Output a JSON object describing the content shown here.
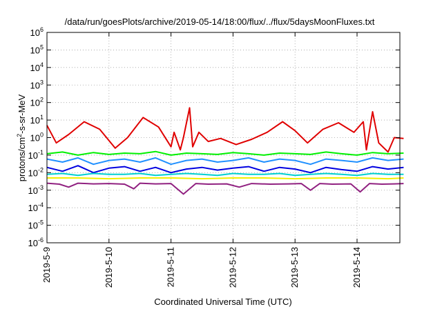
{
  "chart_data": {
    "type": "line",
    "title": "/data/run/goesPlots/archive/2019-05-14/18:00/flux/../flux/5daysMoonFluxes.txt",
    "xlabel": "Coordinated Universal Time (UTC)",
    "ylabel": "protons/cm²-s-sr-MeV",
    "ylabel_parts": {
      "before": "protons/cm",
      "sup": "2",
      "after": "-s-sr-MeV"
    },
    "yscale": "log",
    "ylim": [
      1e-06,
      1000000.0
    ],
    "yticks": [
      {
        "base": "10",
        "exp": "-6",
        "value": -6
      },
      {
        "base": "10",
        "exp": "-5",
        "value": -5
      },
      {
        "base": "10",
        "exp": "-4",
        "value": -4
      },
      {
        "base": "10",
        "exp": "-3",
        "value": -3
      },
      {
        "base": "10",
        "exp": "-2",
        "value": -2
      },
      {
        "base": "10",
        "exp": "-1",
        "value": -1
      },
      {
        "base": "10",
        "exp": "0",
        "value": 0
      },
      {
        "base": "10",
        "exp": "1",
        "value": 1
      },
      {
        "base": "10",
        "exp": "2",
        "value": 2
      },
      {
        "base": "10",
        "exp": "3",
        "value": 3
      },
      {
        "base": "10",
        "exp": "4",
        "value": 4
      },
      {
        "base": "10",
        "exp": "5",
        "value": 5
      },
      {
        "base": "10",
        "exp": "6",
        "value": 6
      }
    ],
    "xlim": [
      "2019-05-09 00:00",
      "2019-05-14 18:00"
    ],
    "xticks": [
      {
        "label": "2019-5-9",
        "day": 0
      },
      {
        "label": "2019-5-10",
        "day": 1
      },
      {
        "label": "2019-5-11",
        "day": 2
      },
      {
        "label": "2019-5-12",
        "day": 3
      },
      {
        "label": "2019-5-13",
        "day": 4
      },
      {
        "label": "2019-5-14",
        "day": 5
      }
    ],
    "grid": true,
    "legend": "none",
    "series": [
      {
        "color": "#e00000",
        "x_days": [
          0,
          0.15,
          0.35,
          0.6,
          0.85,
          1.1,
          1.3,
          1.55,
          1.8,
          2.0,
          2.05,
          2.15,
          2.2,
          2.3,
          2.35,
          2.45,
          2.6,
          2.8,
          3.05,
          3.3,
          3.55,
          3.8,
          4.0,
          4.2,
          4.45,
          4.7,
          4.95,
          5.1,
          5.15,
          5.25,
          5.35,
          5.5,
          5.6,
          5.75
        ],
        "y": [
          5,
          0.5,
          1.5,
          8,
          3,
          0.25,
          1,
          14,
          4,
          0.3,
          2,
          0.2,
          1,
          50,
          0.3,
          2,
          0.6,
          0.9,
          0.4,
          0.8,
          2,
          8,
          2.5,
          0.5,
          3,
          7,
          2,
          8,
          0.2,
          30,
          0.5,
          0.15,
          1,
          0.9
        ]
      },
      {
        "color": "#00f000",
        "x_days": [
          0,
          0.25,
          0.5,
          0.75,
          1.0,
          1.25,
          1.5,
          1.75,
          2.0,
          2.25,
          2.5,
          2.75,
          3.0,
          3.25,
          3.5,
          3.75,
          4.0,
          4.25,
          4.5,
          4.75,
          5.0,
          5.25,
          5.5,
          5.75
        ],
        "y": [
          0.12,
          0.15,
          0.1,
          0.14,
          0.11,
          0.13,
          0.12,
          0.16,
          0.1,
          0.13,
          0.12,
          0.11,
          0.14,
          0.12,
          0.1,
          0.13,
          0.12,
          0.11,
          0.15,
          0.12,
          0.1,
          0.14,
          0.12,
          0.13
        ]
      },
      {
        "color": "#2090ff",
        "x_days": [
          0,
          0.25,
          0.5,
          0.75,
          1.0,
          1.25,
          1.5,
          1.75,
          2.0,
          2.25,
          2.5,
          2.75,
          3.0,
          3.25,
          3.5,
          3.75,
          4.0,
          4.25,
          4.5,
          4.75,
          5.0,
          5.25,
          5.5,
          5.75
        ],
        "y": [
          0.06,
          0.04,
          0.07,
          0.03,
          0.05,
          0.06,
          0.04,
          0.07,
          0.03,
          0.05,
          0.06,
          0.04,
          0.05,
          0.07,
          0.04,
          0.06,
          0.05,
          0.03,
          0.06,
          0.05,
          0.04,
          0.07,
          0.05,
          0.06
        ]
      },
      {
        "color": "#0000e0",
        "x_days": [
          0,
          0.25,
          0.5,
          0.75,
          1.0,
          1.25,
          1.5,
          1.75,
          2.0,
          2.25,
          2.5,
          2.75,
          3.0,
          3.25,
          3.5,
          3.75,
          4.0,
          4.25,
          4.5,
          4.75,
          5.0,
          5.25,
          5.5,
          5.75
        ],
        "y": [
          0.02,
          0.012,
          0.025,
          0.01,
          0.018,
          0.022,
          0.012,
          0.02,
          0.01,
          0.016,
          0.02,
          0.014,
          0.018,
          0.022,
          0.012,
          0.02,
          0.016,
          0.01,
          0.02,
          0.015,
          0.012,
          0.022,
          0.016,
          0.02
        ]
      },
      {
        "color": "#00d0d0",
        "x_days": [
          0,
          0.25,
          0.5,
          0.75,
          1.0,
          1.25,
          1.5,
          1.75,
          2.0,
          2.25,
          2.5,
          2.75,
          3.0,
          3.25,
          3.5,
          3.75,
          4.0,
          4.25,
          4.5,
          4.75,
          5.0,
          5.25,
          5.5,
          5.75
        ],
        "y": [
          0.008,
          0.009,
          0.007,
          0.009,
          0.008,
          0.008,
          0.009,
          0.007,
          0.008,
          0.009,
          0.008,
          0.007,
          0.009,
          0.008,
          0.008,
          0.009,
          0.007,
          0.008,
          0.009,
          0.008,
          0.007,
          0.009,
          0.008,
          0.008
        ]
      },
      {
        "color": "#f0f000",
        "x_days": [
          0,
          0.5,
          1.0,
          1.5,
          2.0,
          2.5,
          3.0,
          3.5,
          4.0,
          4.5,
          5.0,
          5.5,
          5.75
        ],
        "y": [
          0.005,
          0.005,
          0.0045,
          0.005,
          0.005,
          0.0045,
          0.005,
          0.005,
          0.0045,
          0.005,
          0.005,
          0.0045,
          0.005
        ]
      },
      {
        "color": "#902080",
        "x_days": [
          0,
          0.2,
          0.35,
          0.5,
          0.75,
          1.0,
          1.25,
          1.4,
          1.5,
          1.75,
          2.0,
          2.2,
          2.4,
          2.6,
          2.9,
          3.1,
          3.3,
          3.6,
          3.9,
          4.1,
          4.25,
          4.4,
          4.6,
          4.9,
          5.05,
          5.2,
          5.4,
          5.6,
          5.75
        ],
        "y": [
          0.0025,
          0.0022,
          0.0015,
          0.0025,
          0.0023,
          0.0024,
          0.0022,
          0.0012,
          0.0025,
          0.0023,
          0.0024,
          0.0006,
          0.0024,
          0.0022,
          0.0023,
          0.0015,
          0.0024,
          0.0022,
          0.0023,
          0.0024,
          0.001,
          0.0024,
          0.0022,
          0.0023,
          0.0008,
          0.0024,
          0.0022,
          0.0023,
          0.0024
        ]
      }
    ]
  }
}
